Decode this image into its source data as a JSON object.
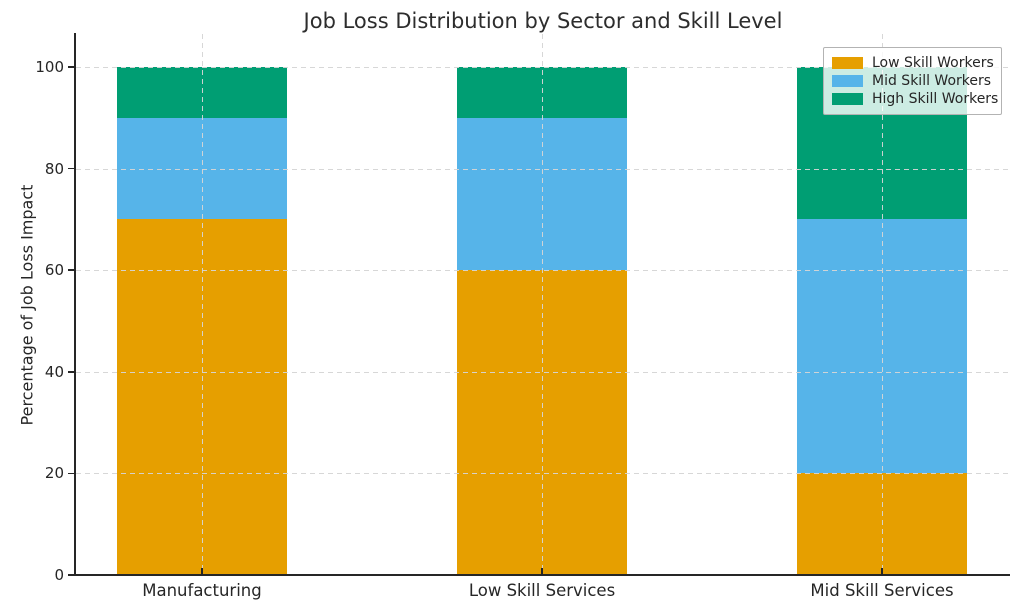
{
  "chart_data": {
    "type": "bar",
    "stacked": true,
    "title": "Job Loss Distribution by Sector and Skill Level",
    "xlabel": "",
    "ylabel": "Percentage of Job Loss Impact",
    "categories": [
      "Manufacturing",
      "Low Skill Services",
      "Mid Skill Services"
    ],
    "series": [
      {
        "name": "Low Skill Workers",
        "color": "#E69F00",
        "values": [
          70,
          60,
          20
        ]
      },
      {
        "name": "Mid Skill Workers",
        "color": "#56B4E9",
        "values": [
          20,
          30,
          50
        ]
      },
      {
        "name": "High Skill Workers",
        "color": "#009E73",
        "values": [
          10,
          10,
          30
        ]
      }
    ],
    "yticks": [
      0,
      20,
      40,
      60,
      80,
      100
    ],
    "ylim": [
      0,
      105
    ],
    "grid": true,
    "grid_style": "dashed",
    "legend_position": "upper right"
  }
}
